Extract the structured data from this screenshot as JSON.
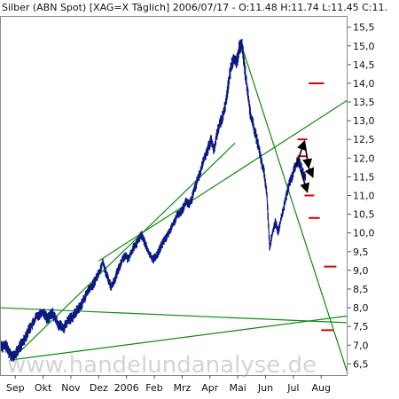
{
  "chart_data": {
    "type": "line",
    "title": "Silber (ABN Spot) [XAG=X  Täglich] 2006/07/17 - O:11.48 H:11.74 L:11.45 C:11.",
    "watermark": "www.handelundanalyse.de",
    "y_axis": {
      "position": "right",
      "ylim": [
        6.2,
        15.8
      ],
      "ticks": [
        6.5,
        7.0,
        7.5,
        8.0,
        8.5,
        9.0,
        9.5,
        10.0,
        10.5,
        11.0,
        11.5,
        12.0,
        12.5,
        13.0,
        13.5,
        14.0,
        14.5,
        15.0,
        15.5
      ],
      "tick_labels": [
        "6,5",
        "7,0",
        "7,5",
        "8,0",
        "8,5",
        "9,0",
        "9,5",
        "10,0",
        "10,5",
        "11,0",
        "11,5",
        "12,0",
        "12,5",
        "13,0",
        "13,5",
        "14,0",
        "14,5",
        "15,0",
        "15,5"
      ]
    },
    "x_axis": {
      "month_index_range": [
        -0.55,
        11.95
      ],
      "ticks": [
        0,
        1,
        2,
        3,
        4,
        5,
        6,
        7,
        8,
        9,
        10,
        11
      ],
      "tick_labels": [
        "Sep",
        "Okt",
        "Nov",
        "Dez",
        "2006",
        "Feb",
        "Mrz",
        "Apr",
        "Mai",
        "Jun",
        "Jul",
        "Aug"
      ]
    },
    "grid": false,
    "colors": {
      "price": "#0b1a80",
      "trendline": "#0f8a0f",
      "level": "#e00000",
      "arrow": "#000000"
    },
    "series": [
      {
        "values_by_month_index": [
          [
            -0.55,
            7.05
          ],
          [
            -0.45,
            6.95
          ],
          [
            -0.35,
            7.0
          ],
          [
            -0.25,
            6.85
          ],
          [
            -0.15,
            6.75
          ],
          [
            -0.05,
            6.7
          ],
          [
            0.05,
            6.8
          ],
          [
            0.15,
            6.95
          ],
          [
            0.25,
            7.05
          ],
          [
            0.35,
            7.2
          ],
          [
            0.45,
            7.35
          ],
          [
            0.55,
            7.5
          ],
          [
            0.65,
            7.6
          ],
          [
            0.75,
            7.75
          ],
          [
            0.85,
            7.8
          ],
          [
            0.95,
            7.9
          ],
          [
            1.05,
            7.85
          ],
          [
            1.15,
            7.7
          ],
          [
            1.25,
            7.8
          ],
          [
            1.35,
            7.85
          ],
          [
            1.45,
            7.7
          ],
          [
            1.55,
            7.55
          ],
          [
            1.65,
            7.5
          ],
          [
            1.75,
            7.45
          ],
          [
            1.85,
            7.6
          ],
          [
            1.95,
            7.7
          ],
          [
            2.05,
            7.75
          ],
          [
            2.15,
            7.85
          ],
          [
            2.25,
            7.95
          ],
          [
            2.35,
            8.05
          ],
          [
            2.45,
            8.2
          ],
          [
            2.55,
            8.35
          ],
          [
            2.65,
            8.5
          ],
          [
            2.75,
            8.55
          ],
          [
            2.85,
            8.7
          ],
          [
            2.95,
            8.85
          ],
          [
            3.05,
            9.0
          ],
          [
            3.15,
            9.25
          ],
          [
            3.25,
            8.95
          ],
          [
            3.35,
            8.75
          ],
          [
            3.45,
            8.55
          ],
          [
            3.55,
            8.7
          ],
          [
            3.65,
            8.9
          ],
          [
            3.75,
            9.1
          ],
          [
            3.85,
            9.3
          ],
          [
            3.95,
            9.4
          ],
          [
            4.05,
            9.3
          ],
          [
            4.15,
            9.45
          ],
          [
            4.25,
            9.6
          ],
          [
            4.35,
            9.7
          ],
          [
            4.45,
            9.85
          ],
          [
            4.55,
            9.95
          ],
          [
            4.65,
            9.75
          ],
          [
            4.75,
            9.55
          ],
          [
            4.85,
            9.4
          ],
          [
            4.95,
            9.3
          ],
          [
            5.05,
            9.35
          ],
          [
            5.15,
            9.5
          ],
          [
            5.25,
            9.65
          ],
          [
            5.35,
            9.8
          ],
          [
            5.45,
            9.9
          ],
          [
            5.55,
            10.05
          ],
          [
            5.65,
            10.2
          ],
          [
            5.75,
            10.35
          ],
          [
            5.85,
            10.5
          ],
          [
            5.95,
            10.55
          ],
          [
            6.05,
            10.7
          ],
          [
            6.15,
            10.85
          ],
          [
            6.25,
            10.75
          ],
          [
            6.35,
            10.9
          ],
          [
            6.45,
            11.2
          ],
          [
            6.55,
            11.4
          ],
          [
            6.65,
            11.6
          ],
          [
            6.75,
            11.9
          ],
          [
            6.85,
            12.1
          ],
          [
            6.95,
            12.3
          ],
          [
            7.05,
            12.5
          ],
          [
            7.15,
            12.2
          ],
          [
            7.25,
            12.65
          ],
          [
            7.35,
            12.9
          ],
          [
            7.45,
            13.1
          ],
          [
            7.55,
            13.4
          ],
          [
            7.65,
            13.9
          ],
          [
            7.75,
            14.4
          ],
          [
            7.85,
            14.7
          ],
          [
            7.95,
            14.5
          ],
          [
            8.05,
            14.9
          ],
          [
            8.15,
            15.1
          ],
          [
            8.25,
            14.4
          ],
          [
            8.35,
            13.8
          ],
          [
            8.45,
            13.2
          ],
          [
            8.55,
            12.9
          ],
          [
            8.65,
            12.6
          ],
          [
            8.75,
            12.3
          ],
          [
            8.85,
            11.9
          ],
          [
            8.95,
            11.6
          ],
          [
            9.05,
            11.0
          ],
          [
            9.15,
            9.6
          ],
          [
            9.25,
            10.0
          ],
          [
            9.35,
            10.3
          ],
          [
            9.45,
            10.0
          ],
          [
            9.55,
            10.35
          ],
          [
            9.65,
            10.65
          ],
          [
            9.75,
            11.0
          ],
          [
            9.85,
            11.3
          ],
          [
            9.95,
            11.5
          ],
          [
            10.05,
            11.75
          ],
          [
            10.15,
            11.9
          ],
          [
            10.25,
            11.85
          ],
          [
            10.35,
            11.6
          ],
          [
            10.45,
            11.48
          ]
        ]
      }
    ],
    "trendlines": [
      [
        [
          -0.55,
          8.0
        ],
        [
          11.95,
          7.6
        ]
      ],
      [
        [
          -0.2,
          6.6
        ],
        [
          11.95,
          7.78
        ]
      ],
      [
        [
          -0.15,
          6.6
        ],
        [
          7.9,
          12.4
        ]
      ],
      [
        [
          3.0,
          9.25
        ],
        [
          11.95,
          13.55
        ]
      ],
      [
        [
          8.1,
          15.1
        ],
        [
          11.95,
          6.25
        ]
      ]
    ],
    "levels": [
      {
        "y": 14.0,
        "x_range": [
          10.55,
          11.1
        ]
      },
      {
        "y": 12.5,
        "x_range": [
          10.15,
          10.5
        ]
      },
      {
        "y": 12.05,
        "x_range": [
          10.15,
          10.5
        ]
      },
      {
        "y": 11.0,
        "x_range": [
          10.4,
          10.75
        ]
      },
      {
        "y": 10.4,
        "x_range": [
          10.55,
          10.95
        ]
      },
      {
        "y": 9.1,
        "x_range": [
          11.1,
          11.55
        ]
      },
      {
        "y": 7.4,
        "x_range": [
          11.0,
          11.45
        ]
      }
    ],
    "projection_arrows": [
      [
        [
          10.1,
          11.8
        ],
        [
          10.4,
          12.45
        ]
      ],
      [
        [
          10.4,
          12.45
        ],
        [
          10.55,
          11.75
        ]
      ],
      [
        [
          10.55,
          11.75
        ],
        [
          10.7,
          11.5
        ]
      ],
      [
        [
          10.25,
          11.7
        ],
        [
          10.5,
          11.1
        ]
      ]
    ]
  }
}
